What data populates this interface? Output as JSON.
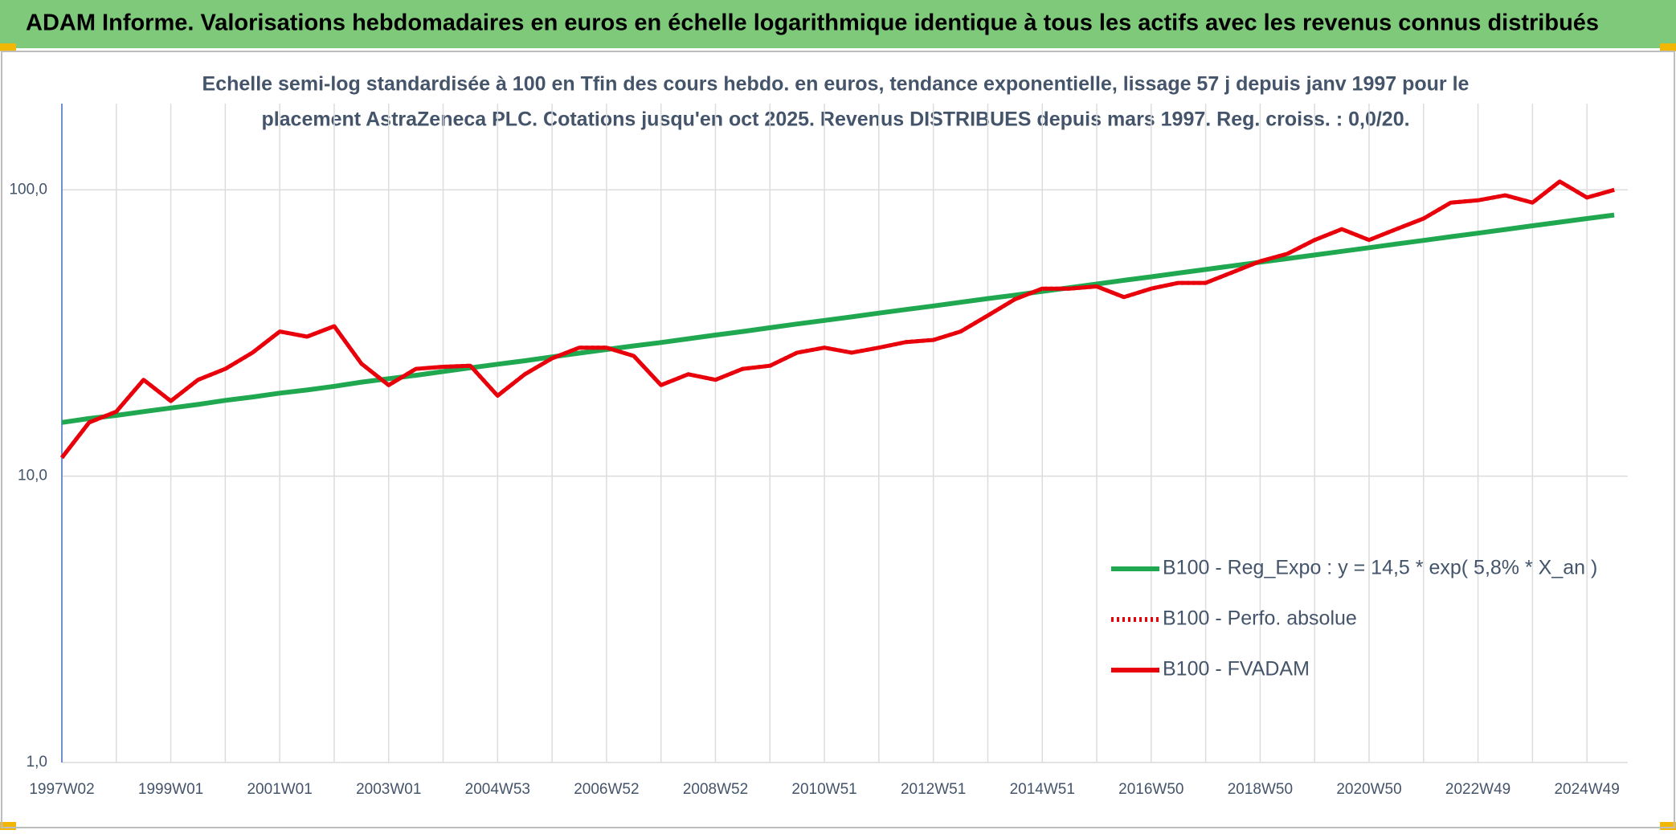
{
  "header": {
    "title": "ADAM Informe. Valorisations hebdomadaires en euros en échelle logarithmique identique à tous les actifs avec les revenus connus distribués"
  },
  "chart_data": {
    "type": "line",
    "title": [
      "Echelle semi-log standardisée à 100 en Tfin des cours hebdo. en euros, tendance exponentielle, lissage 57 j depuis janv 1997 pour le",
      "placement AstraZeneca PLC. Cotations jusqu'en oct 2025. Revenus DISTRIBUES depuis mars 1997. Reg. croiss. : 0,0/20."
    ],
    "log_scale": true,
    "grid": true,
    "legend": "lower right",
    "categories": [
      "1997W02",
      null,
      null,
      null,
      "1999W01",
      null,
      null,
      null,
      "2001W01",
      null,
      null,
      null,
      "2003W01",
      null,
      null,
      null,
      "2004W53",
      null,
      null,
      null,
      "2006W52",
      null,
      null,
      null,
      "2008W52",
      null,
      null,
      null,
      "2010W51",
      null,
      null,
      null,
      "2012W51",
      null,
      null,
      null,
      "2014W51",
      null,
      null,
      null,
      "2016W50",
      null,
      null,
      null,
      "2018W50",
      null,
      null,
      null,
      "2020W50",
      null,
      null,
      null,
      "2022W49",
      null,
      null,
      null,
      "2024W49",
      null
    ],
    "ylim": [
      1,
      200
    ],
    "yticks": [
      {
        "value": 1,
        "label": "1,0"
      },
      {
        "value": 10,
        "label": "10,0"
      },
      {
        "value": 100,
        "label": "100,0"
      }
    ],
    "series": [
      {
        "name": "B100 - Reg_Expo : y = 14,5 * exp( 5,8% *  X_an )",
        "color": "#1fa84f",
        "style": "solid",
        "values": [
          15.4,
          15.9,
          16.3,
          16.8,
          17.3,
          17.8,
          18.4,
          18.9,
          19.5,
          20.0,
          20.6,
          21.3,
          21.9,
          22.5,
          23.2,
          23.9,
          24.6,
          25.3,
          26.1,
          26.9,
          27.7,
          28.5,
          29.3,
          30.2,
          31.1,
          32.0,
          33.0,
          34.0,
          35.0,
          36.0,
          37.1,
          38.2,
          39.3,
          40.5,
          41.7,
          42.9,
          44.2,
          45.5,
          46.9,
          48.3,
          49.7,
          51.2,
          52.7,
          54.3,
          55.9,
          57.5,
          59.2,
          61.0,
          62.8,
          64.7,
          66.6,
          68.6,
          70.6,
          72.7,
          74.9,
          77.1,
          79.4,
          81.7
        ]
      },
      {
        "name": "B100 - Perfo. absolue",
        "color": "#e8000b",
        "style": "dotted",
        "values": [
          11.6,
          15.4,
          16.8,
          21.7,
          18.3,
          21.7,
          23.7,
          27.0,
          32.0,
          30.7,
          33.4,
          24.7,
          20.8,
          23.7,
          24.1,
          24.3,
          19.1,
          22.7,
          25.8,
          28.1,
          28.1,
          26.3,
          20.8,
          22.7,
          21.7,
          23.7,
          24.3,
          27.0,
          28.1,
          27.0,
          28.1,
          29.4,
          29.9,
          32.0,
          36.4,
          41.5,
          45.2,
          45.2,
          46.0,
          42.2,
          45.2,
          47.3,
          47.3,
          51.6,
          56.3,
          59.8,
          66.8,
          72.9,
          66.8,
          72.9,
          79.4,
          90.2,
          91.9,
          95.7,
          90.2,
          106.9,
          94.0,
          100.0
        ]
      },
      {
        "name": "B100 - FVADAM",
        "color": "#e8000b",
        "style": "solid",
        "values": [
          11.6,
          15.4,
          16.8,
          21.7,
          18.3,
          21.7,
          23.7,
          27.0,
          32.0,
          30.7,
          33.4,
          24.7,
          20.8,
          23.7,
          24.1,
          24.3,
          19.1,
          22.7,
          25.8,
          28.1,
          28.1,
          26.3,
          20.8,
          22.7,
          21.7,
          23.7,
          24.3,
          27.0,
          28.1,
          27.0,
          28.1,
          29.4,
          29.9,
          32.0,
          36.4,
          41.5,
          45.2,
          45.2,
          46.0,
          42.2,
          45.2,
          47.3,
          47.3,
          51.6,
          56.3,
          59.8,
          66.8,
          72.9,
          66.8,
          72.9,
          79.4,
          90.2,
          91.9,
          95.7,
          90.2,
          106.9,
          94.0,
          100.0
        ]
      }
    ]
  }
}
